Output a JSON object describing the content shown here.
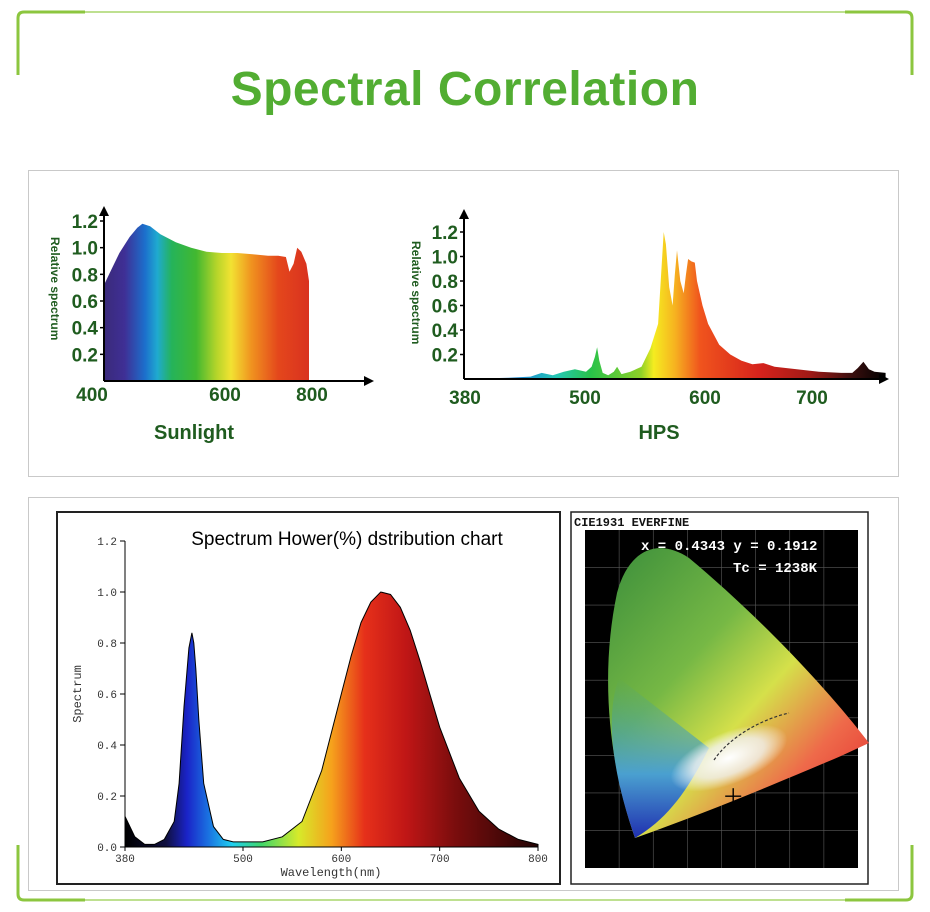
{
  "page": {
    "title": "Spectral Correlation",
    "accent_color": "#52ad32",
    "border_color": "#8cc63f"
  },
  "chart_data": [
    {
      "id": "sunlight",
      "type": "area",
      "caption": "Sunlight",
      "ylabel": "Relative spectrum",
      "x_ticks": [
        "400",
        "600",
        "800"
      ],
      "y_ticks": [
        "1.2",
        "1.0",
        "0.8",
        "0.6",
        "0.4",
        "0.2"
      ],
      "xlim": [
        400,
        840
      ],
      "ylim": [
        0,
        1.3
      ],
      "x": [
        400,
        410,
        430,
        450,
        465,
        475,
        490,
        510,
        540,
        570,
        600,
        630,
        660,
        690,
        720,
        740,
        755,
        762,
        770,
        777,
        785,
        795,
        800
      ],
      "values": [
        0.72,
        0.8,
        0.96,
        1.08,
        1.15,
        1.18,
        1.16,
        1.1,
        1.04,
        1.0,
        0.97,
        0.96,
        0.96,
        0.95,
        0.94,
        0.94,
        0.93,
        0.82,
        0.88,
        1.0,
        0.97,
        0.88,
        0.75
      ],
      "tick_color": "#1f5c1f",
      "caption_color": "#1f5c1f"
    },
    {
      "id": "hps",
      "type": "area",
      "caption": "HPS",
      "ylabel": "Relative spectrum",
      "x_ticks": [
        "380",
        "500",
        "600",
        "700"
      ],
      "y_ticks": [
        "1.2",
        "1.0",
        "0.8",
        "0.6",
        "0.4",
        "0.2"
      ],
      "xlim": [
        380,
        760
      ],
      "ylim": [
        0,
        1.3
      ],
      "x": [
        380,
        420,
        440,
        450,
        460,
        470,
        480,
        490,
        495,
        498,
        500,
        502,
        505,
        510,
        515,
        518,
        522,
        530,
        540,
        548,
        555,
        560,
        562,
        565,
        568,
        570,
        572,
        575,
        578,
        580,
        582,
        585,
        588,
        590,
        595,
        600,
        610,
        620,
        630,
        640,
        650,
        660,
        680,
        700,
        720,
        730,
        735,
        740,
        745,
        750,
        760
      ],
      "values": [
        0.0,
        0.01,
        0.02,
        0.05,
        0.03,
        0.06,
        0.08,
        0.06,
        0.1,
        0.18,
        0.26,
        0.15,
        0.05,
        0.03,
        0.06,
        0.1,
        0.04,
        0.06,
        0.1,
        0.25,
        0.45,
        1.2,
        1.1,
        0.75,
        0.6,
        0.85,
        1.05,
        0.8,
        0.7,
        0.85,
        0.98,
        0.96,
        0.95,
        0.8,
        0.6,
        0.45,
        0.28,
        0.2,
        0.15,
        0.12,
        0.13,
        0.1,
        0.08,
        0.06,
        0.05,
        0.05,
        0.09,
        0.14,
        0.08,
        0.06,
        0.05
      ],
      "peak_height_note": "",
      "tick_color": "#1f5c1f",
      "caption_color": "#1f5c1f"
    },
    {
      "id": "howers",
      "type": "area",
      "title": "Spectrum Hower(%) dstribution chart",
      "xlabel": "Wavelength(nm)",
      "ylabel": "Spectrum",
      "x_ticks": [
        "380",
        "500",
        "600",
        "700",
        "800"
      ],
      "y_ticks": [
        "1.2",
        "1.0",
        "0.8",
        "0.6",
        "0.4",
        "0.2",
        "0.0"
      ],
      "xlim": [
        380,
        800
      ],
      "ylim": [
        0,
        1.2
      ],
      "x": [
        380,
        390,
        400,
        410,
        420,
        430,
        435,
        440,
        445,
        448,
        450,
        452,
        455,
        460,
        470,
        480,
        490,
        500,
        520,
        540,
        560,
        580,
        600,
        610,
        620,
        630,
        640,
        650,
        660,
        670,
        680,
        690,
        700,
        720,
        740,
        760,
        780,
        800
      ],
      "values": [
        0.12,
        0.04,
        0.01,
        0.01,
        0.03,
        0.1,
        0.25,
        0.55,
        0.78,
        0.84,
        0.8,
        0.7,
        0.5,
        0.25,
        0.08,
        0.03,
        0.02,
        0.02,
        0.02,
        0.04,
        0.1,
        0.3,
        0.6,
        0.75,
        0.88,
        0.96,
        1.0,
        0.99,
        0.94,
        0.85,
        0.73,
        0.6,
        0.47,
        0.27,
        0.14,
        0.07,
        0.03,
        0.01
      ]
    },
    {
      "id": "cie",
      "type": "scatter",
      "title": "CIE1931 EVERFINE",
      "readout_xy": "x = 0.4343  y = 0.1912",
      "readout_tc": "Tc = 1238K",
      "point": {
        "x": 0.4343,
        "y": 0.1912
      },
      "xlim": [
        0,
        0.8
      ],
      "ylim": [
        0,
        0.9
      ]
    }
  ]
}
